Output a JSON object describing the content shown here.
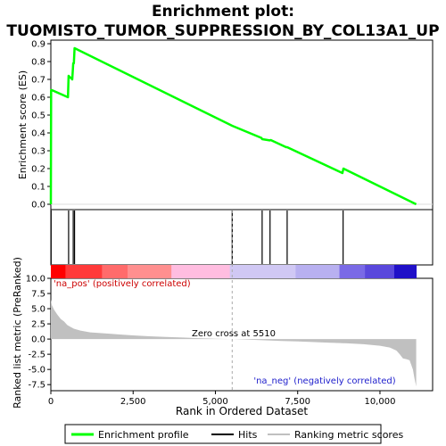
{
  "chart_data": {
    "type": "line",
    "title": "Enrichment plot:",
    "subtitle": "TUOMISTO_TUMOR_SUPPRESSION_BY_COL13A1_UP",
    "es_panel": {
      "ylabel": "Enrichment score (ES)",
      "ylim": [
        -0.03,
        0.92
      ],
      "yticks": [
        0.0,
        0.1,
        0.2,
        0.3,
        0.4,
        0.5,
        0.6,
        0.7,
        0.8,
        0.9
      ],
      "ytick_labels": [
        "0.0",
        "0.1",
        "0.2",
        "0.3",
        "0.4",
        "0.5",
        "0.6",
        "0.7",
        "0.8",
        "0.9"
      ],
      "series": [
        {
          "name": "Enrichment profile",
          "color": "#00ff00",
          "x": [
            0,
            8,
            30,
            520,
            540,
            650,
            680,
            700,
            720,
            5510,
            6400,
            6420,
            6650,
            6680,
            7150,
            7180,
            8860,
            8890,
            11100
          ],
          "y": [
            0.0,
            0.64,
            0.64,
            0.6,
            0.72,
            0.7,
            0.79,
            0.79,
            0.875,
            0.44,
            0.372,
            0.365,
            0.358,
            0.36,
            0.32,
            0.32,
            0.175,
            0.2,
            0.0
          ]
        }
      ]
    },
    "hits": {
      "name": "Hits",
      "x": [
        8,
        540,
        680,
        720,
        5510,
        6420,
        6660,
        7180,
        8880
      ]
    },
    "rank_bar": {
      "colors": [
        "#ff0000",
        "#ff3a3a",
        "#ff6b6b",
        "#ff8f8f",
        "#ffbde0",
        "#d0c8f4",
        "#b8b0f0",
        "#7a6ae6",
        "#5a48dc",
        "#2010c8"
      ],
      "segments": [
        [
          0,
          0.04
        ],
        [
          0.04,
          0.14
        ],
        [
          0.14,
          0.21
        ],
        [
          0.21,
          0.33
        ],
        [
          0.33,
          0.49
        ],
        [
          0.49,
          0.67
        ],
        [
          0.67,
          0.79
        ],
        [
          0.79,
          0.86
        ],
        [
          0.86,
          0.94
        ],
        [
          0.94,
          1.0
        ]
      ]
    },
    "metric_panel": {
      "ylabel": "Ranked list metric (PreRanked)",
      "ylim": [
        -8.5,
        10.0
      ],
      "yticks": [
        10.0,
        7.5,
        5.0,
        2.5,
        0.0,
        -2.5,
        -5.0,
        -7.5
      ],
      "ytick_labels": [
        "10.0",
        "7.5",
        "5.0",
        "2.5",
        "0.0",
        "-2.5",
        "-5.0",
        "-7.5"
      ],
      "series": [
        {
          "name": "Ranking metric scores",
          "color": "#c0c0c0",
          "x": [
            0,
            30,
            100,
            200,
            300,
            400,
            500,
            600,
            700,
            900,
            1200,
            1600,
            2000,
            2500,
            3000,
            3500,
            4000,
            4500,
            5000,
            5510,
            6000,
            6500,
            7000,
            7500,
            8000,
            8500,
            9000,
            9500,
            10000,
            10300,
            10500,
            10600,
            10700,
            10800,
            10900,
            11000,
            11050,
            11100
          ],
          "y": [
            6.5,
            5.6,
            4.8,
            4.0,
            3.3,
            2.9,
            2.3,
            2.0,
            1.7,
            1.4,
            1.1,
            0.95,
            0.8,
            0.6,
            0.45,
            0.35,
            0.25,
            0.15,
            0.05,
            0.0,
            -0.1,
            -0.2,
            -0.3,
            -0.4,
            -0.5,
            -0.6,
            -0.7,
            -0.85,
            -1.1,
            -1.4,
            -1.9,
            -2.5,
            -3.2,
            -3.3,
            -3.5,
            -5.0,
            -6.5,
            -7.8
          ]
        }
      ],
      "annotations": {
        "pos": "'na_pos' (positively correlated)",
        "zero": "Zero cross at 5510",
        "neg": "'na_neg' (negatively correlated)"
      },
      "zero_cross": 5510
    },
    "xaxis": {
      "label": "Rank in Ordered Dataset",
      "xlim": [
        0,
        11600
      ],
      "ticks": [
        0,
        2500,
        5000,
        7500,
        10000
      ],
      "tick_labels": [
        "0",
        "2,500",
        "5,000",
        "7,500",
        "10,000"
      ]
    },
    "legend": {
      "placement": "bottom",
      "entries": [
        {
          "label": "Enrichment profile",
          "color": "#00ff00"
        },
        {
          "label": "Hits",
          "color": "#000000"
        },
        {
          "label": "Ranking metric scores",
          "color": "#c0c0c0"
        }
      ]
    }
  }
}
